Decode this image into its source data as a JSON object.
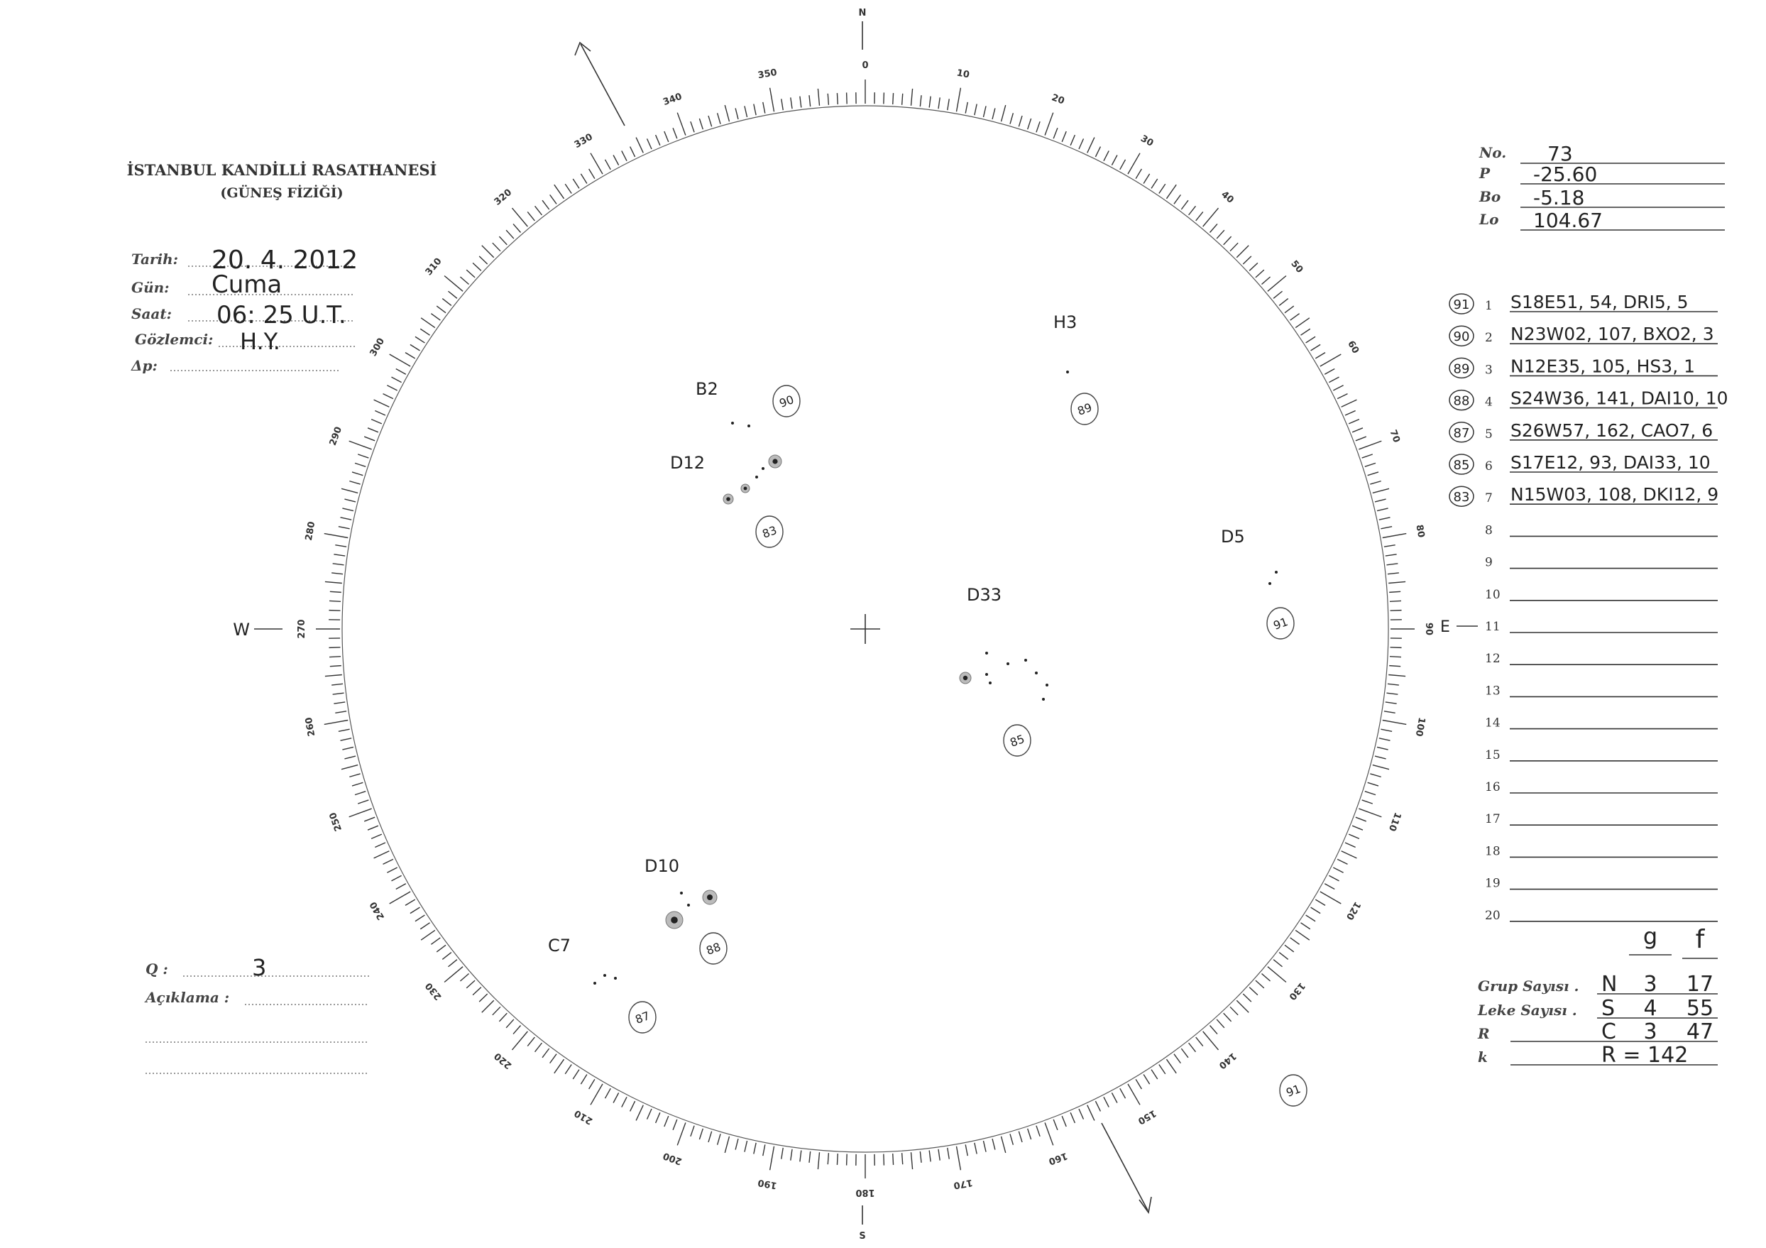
{
  "header": {
    "institution": "İSTANBUL KANDİLLİ RASATHANESİ",
    "department": "(GÜNEŞ FİZİĞİ)"
  },
  "fields": [
    {
      "label": "Tarih:",
      "value": "20. 4. 2012"
    },
    {
      "label": "Gün:",
      "value": "Cuma"
    },
    {
      "label": "Saat:",
      "value": "06: 25 U.T."
    },
    {
      "label": "Gözlemci:",
      "value": "H.Y."
    },
    {
      "label": "Δp:",
      "value": ""
    }
  ],
  "ephemeris": [
    {
      "label": "No.",
      "value": "73"
    },
    {
      "label": "P",
      "value": "-25.60"
    },
    {
      "label": "Bo",
      "value": "-5.18"
    },
    {
      "label": "Lo",
      "value": "104.67"
    }
  ],
  "groups": [
    {
      "circle": "91",
      "index": "1",
      "text": "S18E51, 54, DRI5, 5"
    },
    {
      "circle": "90",
      "index": "2",
      "text": "N23W02, 107, BXO2, 3"
    },
    {
      "circle": "89",
      "index": "3",
      "text": "N12E35, 105, HS3, 1"
    },
    {
      "circle": "88",
      "index": "4",
      "text": "S24W36, 141, DAI10, 10"
    },
    {
      "circle": "87",
      "index": "5",
      "text": "S26W57, 162, CAO7, 6"
    },
    {
      "circle": "85",
      "index": "6",
      "text": "S17E12, 93, DAI33, 10"
    },
    {
      "circle": "83",
      "index": "7",
      "text": "N15W03, 108, DKI12, 9"
    },
    {
      "circle": "",
      "index": "8",
      "text": ""
    },
    {
      "circle": "",
      "index": "9",
      "text": ""
    },
    {
      "circle": "",
      "index": "10",
      "text": ""
    },
    {
      "circle": "",
      "index": "11",
      "text": ""
    },
    {
      "circle": "",
      "index": "12",
      "text": ""
    },
    {
      "circle": "",
      "index": "13",
      "text": ""
    },
    {
      "circle": "",
      "index": "14",
      "text": ""
    },
    {
      "circle": "",
      "index": "15",
      "text": ""
    },
    {
      "circle": "",
      "index": "16",
      "text": ""
    },
    {
      "circle": "",
      "index": "17",
      "text": ""
    },
    {
      "circle": "",
      "index": "18",
      "text": ""
    },
    {
      "circle": "",
      "index": "19",
      "text": ""
    },
    {
      "circle": "",
      "index": "20",
      "text": ""
    }
  ],
  "summary": {
    "col_g": "g",
    "col_f": "f",
    "rows": [
      {
        "label": "Grup Sayısı .",
        "hem": "N",
        "g": "3",
        "f": "17"
      },
      {
        "label": "Leke Sayısı .",
        "hem": "S",
        "g": "4",
        "f": "55"
      },
      {
        "label": "R",
        "hem": "C",
        "g": "3",
        "f": "47"
      },
      {
        "label": "k",
        "hem": "R = 142",
        "g": "",
        "f": ""
      }
    ]
  },
  "notes": {
    "q_label": "Q :",
    "q_value": "3",
    "aciklama_label": "Açıklama :"
  },
  "disk": {
    "compass": {
      "north": "N",
      "south": "S",
      "east": "E",
      "west": "W"
    },
    "position_angle_deg": -25.6,
    "scale_labels": [
      "0",
      "10",
      "20",
      "30",
      "40",
      "50",
      "60",
      "70",
      "80",
      "90",
      "100",
      "110",
      "120",
      "130",
      "140",
      "150",
      "160",
      "170",
      "180",
      "190",
      "200",
      "210",
      "220",
      "230",
      "240",
      "250",
      "260",
      "270",
      "280",
      "290",
      "300",
      "310",
      "320",
      "330",
      "340",
      "350"
    ],
    "spot_groups": [
      {
        "label": "H3",
        "circle": "89"
      },
      {
        "label": "B2",
        "circle": "90"
      },
      {
        "label": "D12",
        "circle": "83"
      },
      {
        "label": "D5",
        "circle": "91"
      },
      {
        "label": "D33",
        "circle": "85"
      },
      {
        "label": "D10",
        "circle": "88"
      },
      {
        "label": "C7",
        "circle": "87"
      },
      {
        "label": "",
        "circle": "91"
      }
    ]
  }
}
